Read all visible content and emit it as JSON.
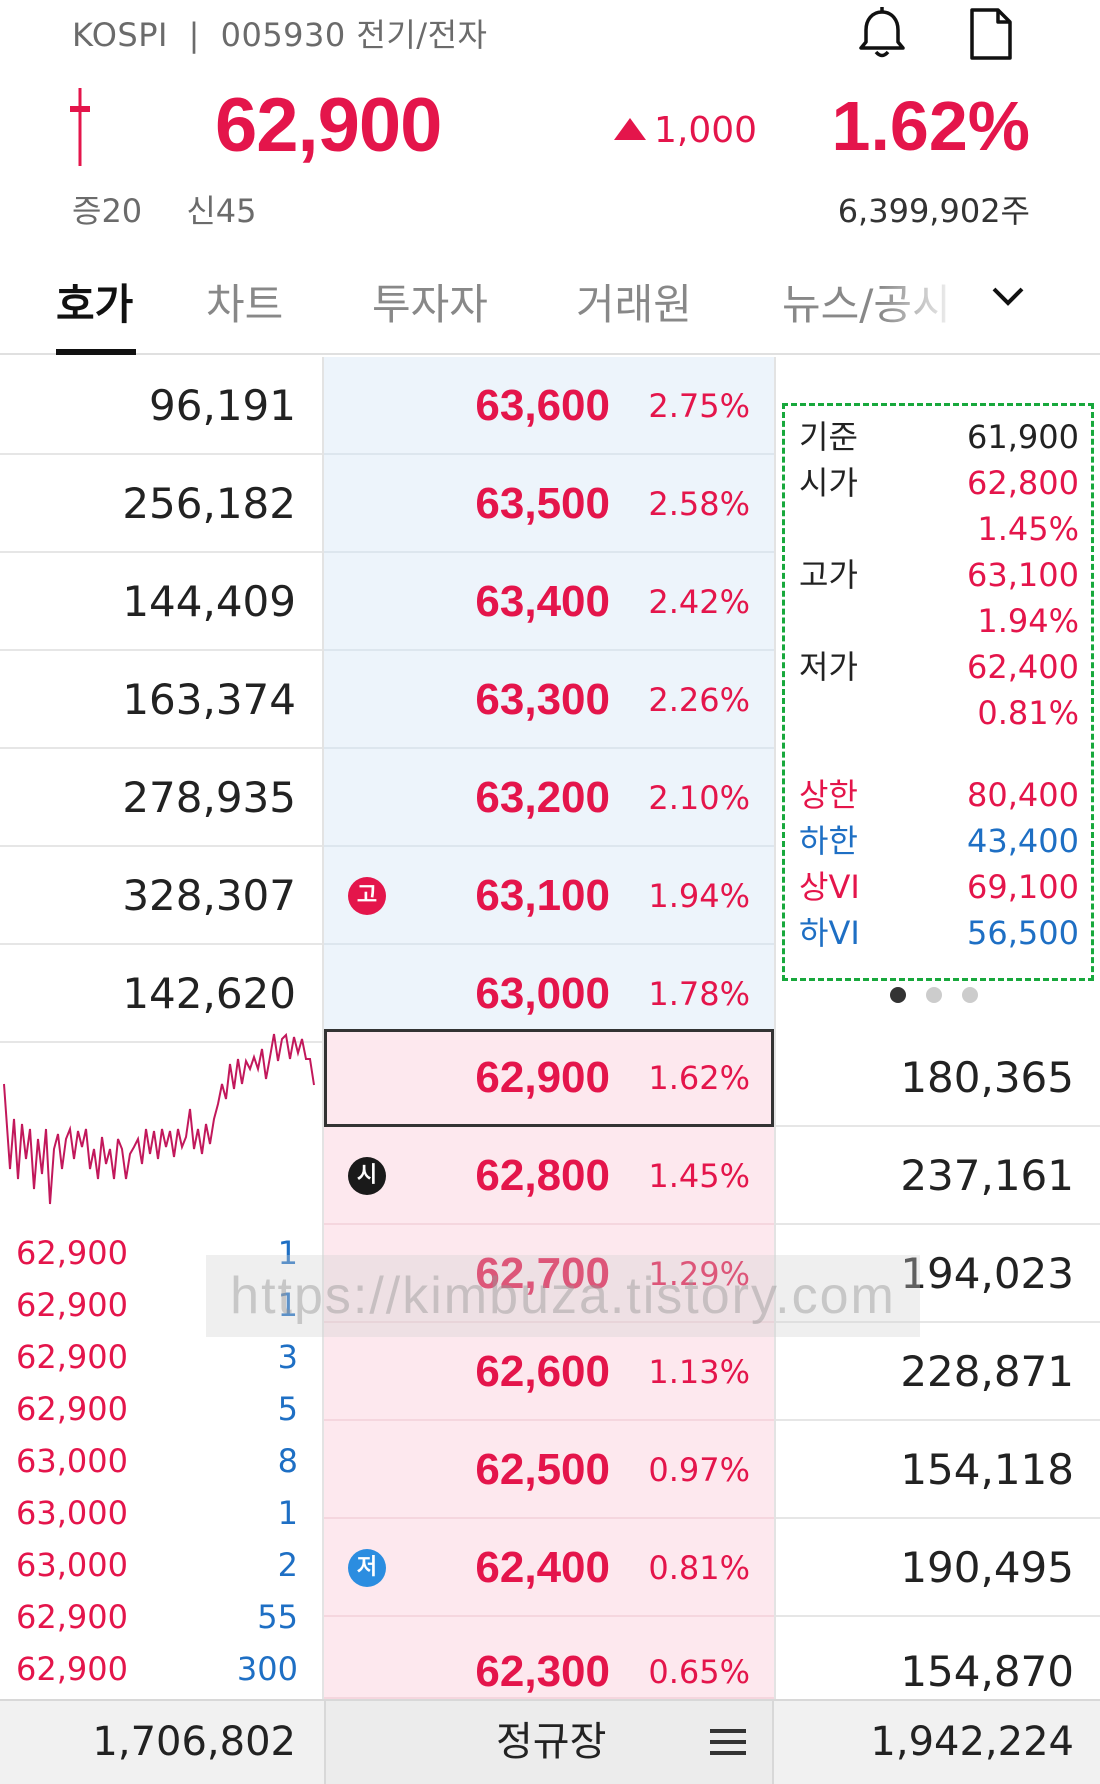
{
  "header": {
    "market": "KOSPI",
    "separator": "|",
    "code_name": "005930 전기/전자",
    "price": "62,900",
    "change": "1,000",
    "rate": "1.62%",
    "margin_1": "증20",
    "margin_2": "신45",
    "volume": "6,399,902주",
    "icons": {
      "alert": "bell-icon",
      "memo": "document-icon"
    }
  },
  "tabs": [
    {
      "label": "호가",
      "active": true
    },
    {
      "label": "차트"
    },
    {
      "label": "투자자"
    },
    {
      "label": "거래원"
    },
    {
      "label": "뉴스/공시"
    }
  ],
  "asks": [
    {
      "qty": "96,191",
      "price": "63,600",
      "rate": "2.75%"
    },
    {
      "qty": "256,182",
      "price": "63,500",
      "rate": "2.58%"
    },
    {
      "qty": "144,409",
      "price": "63,400",
      "rate": "2.42%"
    },
    {
      "qty": "163,374",
      "price": "63,300",
      "rate": "2.26%"
    },
    {
      "qty": "278,935",
      "price": "63,200",
      "rate": "2.10%"
    },
    {
      "qty": "328,307",
      "price": "63,100",
      "rate": "1.94%",
      "mark": "고"
    },
    {
      "qty": "142,620",
      "price": "63,000",
      "rate": "1.78%"
    }
  ],
  "bids": [
    {
      "price": "62,900",
      "rate": "1.62%",
      "qty": "180,365"
    },
    {
      "price": "62,800",
      "rate": "1.45%",
      "qty": "237,161",
      "mark": "시"
    },
    {
      "price": "62,700",
      "rate": "1.29%",
      "qty": "194,023"
    },
    {
      "price": "62,600",
      "rate": "1.13%",
      "qty": "228,871"
    },
    {
      "price": "62,500",
      "rate": "0.97%",
      "qty": "154,118"
    },
    {
      "price": "62,400",
      "rate": "0.81%",
      "qty": "190,495",
      "mark": "저"
    },
    {
      "price": "62,300",
      "rate": "0.65%",
      "qty": "154,870"
    }
  ],
  "info": {
    "base_label": "기준",
    "base_value": "61,900",
    "open_label": "시가",
    "open_value": "62,800",
    "open_rate": "1.45%",
    "high_label": "고가",
    "high_value": "63,100",
    "high_rate": "1.94%",
    "low_label": "저가",
    "low_value": "62,400",
    "low_rate": "0.81%",
    "upper_label": "상한",
    "upper_value": "80,400",
    "lower_label": "하한",
    "lower_value": "43,400",
    "upper_vi_label": "상VI",
    "upper_vi_value": "69,100",
    "lower_vi_label": "하VI",
    "lower_vi_value": "56,500"
  },
  "trades": [
    {
      "price": "62,900",
      "qty": "1"
    },
    {
      "price": "62,900",
      "qty": "1"
    },
    {
      "price": "62,900",
      "qty": "3"
    },
    {
      "price": "62,900",
      "qty": "5"
    },
    {
      "price": "63,000",
      "qty": "8"
    },
    {
      "price": "63,000",
      "qty": "1"
    },
    {
      "price": "63,000",
      "qty": "2"
    },
    {
      "price": "62,900",
      "qty": "55"
    },
    {
      "price": "62,900",
      "qty": "300"
    }
  ],
  "footer": {
    "total_ask": "1,706,802",
    "session": "정규장",
    "total_bid": "1,942,224"
  },
  "watermark": "https://kimbuza.tistory.com",
  "colors": {
    "up": "#e4154b",
    "down": "#1e6fc4",
    "ask_bg": "#edf4fb",
    "bid_bg": "#fde8ee",
    "highlight_box": "#18a83c"
  }
}
